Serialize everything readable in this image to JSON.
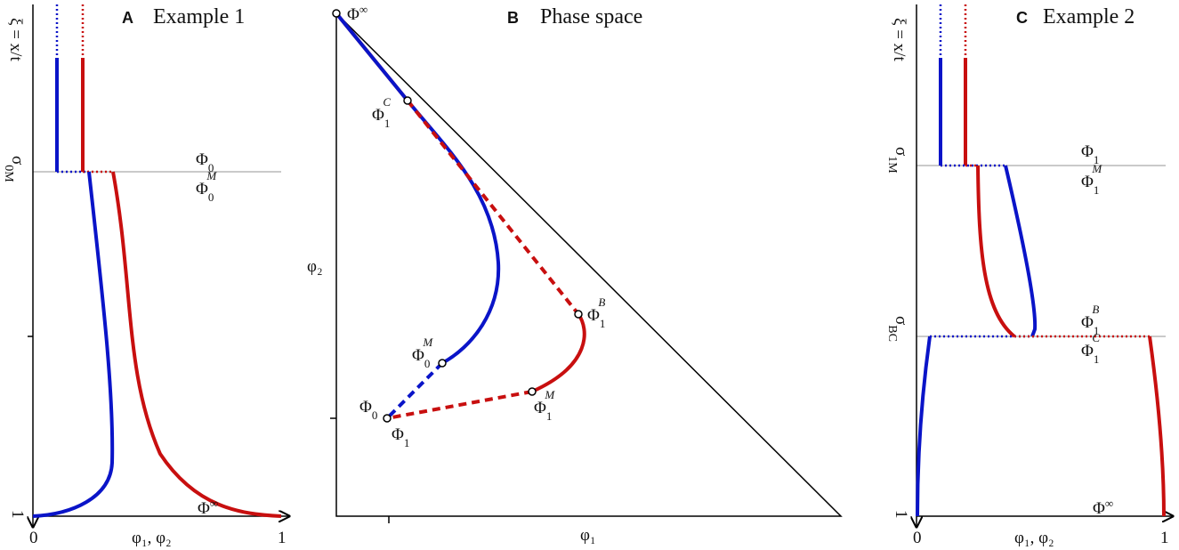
{
  "panel_a": {
    "letter": "A",
    "title": "Example 1",
    "y_label": "ξ = x/t",
    "x_label": "φ₁, φ₂",
    "x_ticks": [
      "0",
      "1"
    ],
    "y_end": "1",
    "sigma": {
      "base": "σ",
      "sub": "0M"
    },
    "labels": [
      {
        "base": "Φ",
        "sub": "0"
      },
      {
        "base": "Φ",
        "sub": "0",
        "sup": "M"
      },
      {
        "base": "Φ",
        "sup": "∞"
      }
    ]
  },
  "panel_b": {
    "letter": "B",
    "title": "Phase space",
    "y_label": "φ₂",
    "x_label": "φ₁",
    "labels": [
      {
        "base": "Φ",
        "sup": "∞"
      },
      {
        "base": "Φ",
        "sub": "1",
        "sup": "C"
      },
      {
        "base": "Φ",
        "sub": "1",
        "sup": "B"
      },
      {
        "base": "Φ",
        "sub": "0",
        "sup": "M"
      },
      {
        "base": "Φ",
        "sub": "0"
      },
      {
        "base": "Φ",
        "sub": "1"
      },
      {
        "base": "Φ",
        "sub": "1",
        "sup": "M"
      }
    ]
  },
  "panel_c": {
    "letter": "C",
    "title": "Example 2",
    "y_label": "ξ = x/t",
    "x_label": "φ₁, φ₂",
    "x_ticks": [
      "0",
      "1"
    ],
    "y_end": "1",
    "sigma_1m": {
      "base": "σ",
      "sub": "1M"
    },
    "sigma_bc": {
      "base": "σ",
      "sub": "BC"
    },
    "labels": [
      {
        "base": "Φ",
        "sub": "1"
      },
      {
        "base": "Φ",
        "sub": "1",
        "sup": "M"
      },
      {
        "base": "Φ",
        "sub": "1",
        "sup": "B"
      },
      {
        "base": "Φ",
        "sub": "1",
        "sup": "C"
      },
      {
        "base": "Φ",
        "sup": "∞"
      }
    ]
  }
}
